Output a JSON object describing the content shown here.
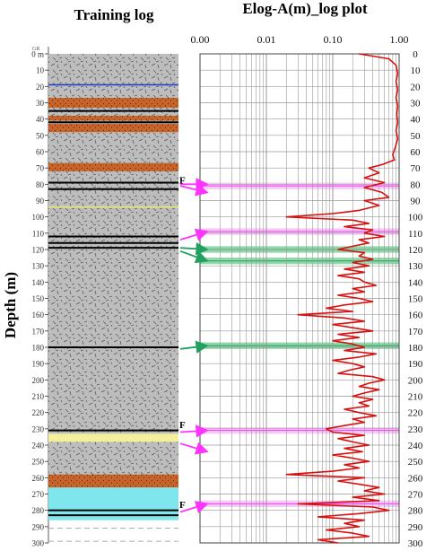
{
  "figure": {
    "left_title": "Training log",
    "right_title": "Elog-A(m)_log plot",
    "ylabel": "Depth (m)",
    "left_unit_tag": "GR",
    "fault_marker": "F"
  },
  "colors": {
    "background_rock": "#bdbdbd",
    "texture": "#5a5a5a",
    "orange_layer": "#c8642a",
    "cyan_layer": "#7fe6ee",
    "yellow_line": "#e8e870",
    "blue_line": "#1f3cc8",
    "black_line": "#000000",
    "curve": "#d81010",
    "magenta": "#ff33ff",
    "magenta_band": "#f7c9f7",
    "green": "#22a060",
    "green_band": "#8fd8a8",
    "grid": "#9a9a9a"
  },
  "left_column": {
    "depth_ticks": [
      "0 m",
      "10",
      "20",
      "30",
      "40",
      "50",
      "60",
      "70",
      "80",
      "90",
      "100",
      "110",
      "120",
      "130",
      "140",
      "150",
      "160",
      "170",
      "180",
      "190",
      "200",
      "210",
      "220",
      "230",
      "240",
      "250",
      "260",
      "270",
      "280",
      "290",
      "300"
    ],
    "orange_layers": [
      [
        27,
        33
      ],
      [
        38,
        41
      ],
      [
        43,
        48
      ],
      [
        67,
        72
      ],
      [
        258,
        266
      ]
    ],
    "cyan_layer": [
      266,
      286
    ],
    "yellow_band": [
      233,
      238
    ],
    "lines": [
      {
        "depth": 19,
        "color": "blue"
      },
      {
        "depth": 35,
        "color": "black"
      },
      {
        "depth": 42,
        "color": "black"
      },
      {
        "depth": 79,
        "color": "black"
      },
      {
        "depth": 83,
        "color": "black"
      },
      {
        "depth": 94,
        "color": "yellow"
      },
      {
        "depth": 112,
        "color": "black"
      },
      {
        "depth": 116,
        "color": "black"
      },
      {
        "depth": 119,
        "color": "black"
      },
      {
        "depth": 180,
        "color": "black"
      },
      {
        "depth": 231,
        "color": "black"
      },
      {
        "depth": 280,
        "color": "black"
      },
      {
        "depth": 283,
        "color": "black"
      }
    ],
    "fault_depths": [
      80,
      230,
      279
    ]
  },
  "chart_data": {
    "type": "line",
    "title": "Elog-A(m)_log plot",
    "ylabel": "Depth (m)",
    "x_scale": "log",
    "x_ticks": [
      "0.00",
      "0.01",
      "0.10",
      "1.00"
    ],
    "x_tick_values": [
      0.001,
      0.01,
      0.1,
      1.0
    ],
    "xlim": [
      0.001,
      1.0
    ],
    "ylim": [
      0,
      300
    ],
    "y_ticks": [
      0,
      10,
      20,
      30,
      40,
      50,
      60,
      70,
      80,
      90,
      100,
      110,
      120,
      130,
      140,
      150,
      160,
      170,
      180,
      190,
      200,
      210,
      220,
      230,
      240,
      250,
      260,
      270,
      280,
      290,
      300
    ],
    "grid": true,
    "series": [
      {
        "depth": [
          0,
          3,
          7,
          12,
          17,
          22,
          27,
          32,
          37,
          42,
          47,
          52,
          57,
          62,
          65,
          68,
          70,
          73,
          76,
          79,
          82,
          85,
          88,
          90,
          93,
          96,
          98,
          100,
          102,
          104,
          106,
          108,
          110,
          112,
          114,
          116,
          118,
          120,
          122,
          124,
          126,
          128,
          130,
          132,
          134,
          136,
          138,
          140,
          142,
          144,
          146,
          148,
          150,
          152,
          154,
          156,
          158,
          160,
          162,
          164,
          166,
          168,
          170,
          172,
          174,
          176,
          178,
          180,
          182,
          184,
          186,
          188,
          190,
          192,
          194,
          196,
          198,
          200,
          202,
          204,
          206,
          208,
          210,
          212,
          214,
          216,
          218,
          220,
          222,
          224,
          226,
          228,
          230,
          232,
          234,
          236,
          238,
          240,
          242,
          244,
          246,
          248,
          250,
          252,
          254,
          256,
          258,
          260,
          262,
          264,
          266,
          268,
          270,
          272,
          274,
          276,
          278,
          280,
          282,
          284,
          286,
          288,
          290,
          292,
          294,
          296,
          298,
          300
        ],
        "values": [
          0.25,
          0.7,
          0.9,
          0.95,
          0.9,
          0.95,
          0.9,
          0.95,
          0.92,
          0.95,
          0.9,
          0.95,
          0.88,
          0.8,
          0.85,
          0.55,
          0.35,
          0.5,
          0.3,
          0.6,
          0.3,
          0.55,
          0.7,
          0.3,
          0.5,
          0.25,
          0.1,
          0.02,
          0.2,
          0.35,
          0.15,
          0.4,
          0.3,
          0.6,
          0.25,
          0.35,
          0.2,
          0.12,
          0.3,
          0.25,
          0.4,
          0.2,
          0.35,
          0.15,
          0.3,
          0.12,
          0.25,
          0.3,
          0.45,
          0.2,
          0.3,
          0.12,
          0.25,
          0.4,
          0.15,
          0.08,
          0.2,
          0.03,
          0.15,
          0.3,
          0.1,
          0.2,
          0.4,
          0.12,
          0.25,
          0.1,
          0.2,
          0.3,
          0.15,
          0.45,
          0.25,
          0.1,
          0.2,
          0.3,
          0.18,
          0.12,
          0.4,
          0.6,
          0.35,
          0.25,
          0.5,
          0.3,
          0.2,
          0.4,
          0.25,
          0.35,
          0.15,
          0.25,
          0.45,
          0.2,
          0.3,
          0.15,
          0.08,
          0.1,
          0.3,
          0.12,
          0.2,
          0.35,
          0.15,
          0.28,
          0.1,
          0.2,
          0.35,
          0.15,
          0.25,
          0.1,
          0.02,
          0.3,
          0.12,
          0.25,
          0.5,
          0.3,
          0.6,
          0.2,
          0.5,
          0.03,
          0.4,
          0.7,
          0.25,
          0.06,
          0.3,
          0.15,
          0.25,
          0.08,
          0.2,
          0.35,
          0.06,
          0.12
        ]
      }
    ],
    "magenta_bands": [
      [
        79,
        83
      ],
      [
        107,
        111
      ],
      [
        229,
        233
      ],
      [
        274,
        278
      ]
    ],
    "green_bands": [
      [
        118,
        122
      ],
      [
        125,
        129
      ],
      [
        177,
        181
      ]
    ],
    "arrows": [
      {
        "from": 80,
        "to": 80,
        "color": "magenta"
      },
      {
        "from": 81,
        "to": 85,
        "color": "magenta"
      },
      {
        "from": 114,
        "to": 109,
        "color": "magenta"
      },
      {
        "from": 119,
        "to": 120,
        "color": "green"
      },
      {
        "from": 121,
        "to": 127,
        "color": "green"
      },
      {
        "from": 181,
        "to": 179,
        "color": "green"
      },
      {
        "from": 232,
        "to": 231,
        "color": "magenta"
      },
      {
        "from": 239,
        "to": 244,
        "color": "magenta"
      },
      {
        "from": 281,
        "to": 276,
        "color": "magenta"
      }
    ]
  }
}
